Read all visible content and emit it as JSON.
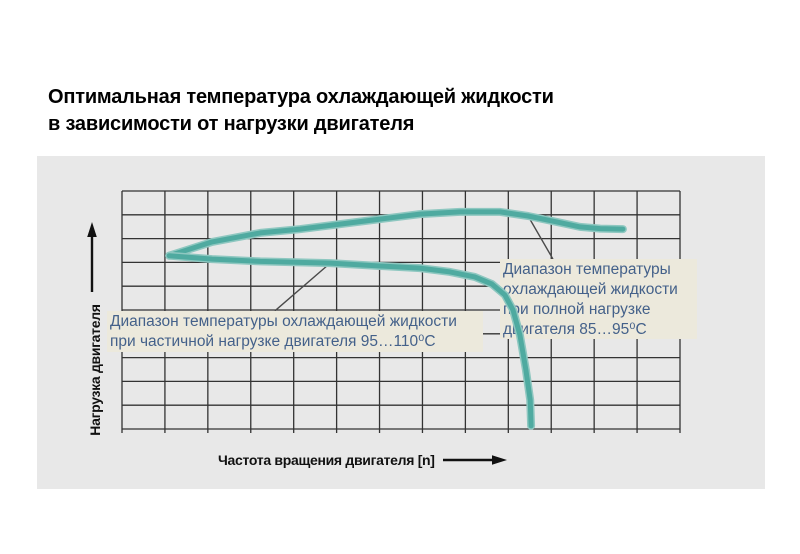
{
  "slide": {
    "title": "Оптимальная температура охлаждающей жидкости\nв зависимости от нагрузки двигателя"
  },
  "chart_data": {
    "type": "line",
    "title": "Оптимальная температура охлаждающей жидкости в зависимости от нагрузки двигателя",
    "xlabel": "Частота вращения двигателя [n]",
    "ylabel": "Нагрузка двигателя",
    "axes": {
      "qualitative": true,
      "x_arrow": "right",
      "y_arrow": "up",
      "x_range_grid_units": [
        0,
        13
      ],
      "y_range_grid_units": [
        0,
        10
      ],
      "grid": "on",
      "grid_columns": 13,
      "grid_rows": 10
    },
    "legend": "none",
    "colors": {
      "panel_bg": "#e8e8e8",
      "grid_line": "#333333",
      "curve": "#4faaa0",
      "curve_halo": "#8ec7c0",
      "leader_line": "#4a4a4a",
      "note_bg": "#ece9dc",
      "note_text": "#44618a"
    },
    "series": [
      {
        "name": "coolant-temp-boundary-full-load",
        "points": [
          [
            1.1,
            7.28
          ],
          [
            2.1,
            7.86
          ],
          [
            3.22,
            8.24
          ],
          [
            4.15,
            8.4
          ],
          [
            5.08,
            8.61
          ],
          [
            6.01,
            8.82
          ],
          [
            6.94,
            9.03
          ],
          [
            7.87,
            9.12
          ],
          [
            8.81,
            9.12
          ],
          [
            9.46,
            8.95
          ],
          [
            10.13,
            8.7
          ],
          [
            10.67,
            8.49
          ],
          [
            11.14,
            8.42
          ],
          [
            11.67,
            8.4
          ]
        ]
      },
      {
        "name": "coolant-temp-boundary-partial-load",
        "points": [
          [
            1.1,
            7.28
          ],
          [
            2.1,
            7.14
          ],
          [
            3.22,
            7.04
          ],
          [
            4.85,
            6.97
          ],
          [
            6.01,
            6.85
          ],
          [
            6.94,
            6.76
          ],
          [
            7.64,
            6.6
          ],
          [
            8.22,
            6.39
          ],
          [
            8.62,
            6.09
          ],
          [
            8.92,
            5.63
          ],
          [
            9.11,
            5.0
          ],
          [
            9.27,
            3.95
          ],
          [
            9.41,
            2.48
          ],
          [
            9.51,
            1.22
          ],
          [
            9.53,
            0.13
          ]
        ]
      }
    ],
    "annotations": [
      {
        "id": "partial-load",
        "text": "Диапазон температуры охлаждающей жидкости\nпри частичной нагрузке двигателя 95…110⁰С",
        "leader": [
          [
            4.85,
            6.97
          ],
          [
            3.56,
            4.96
          ]
        ]
      },
      {
        "id": "full-load",
        "text": "Диапазон температуры\nохлаждающей жидкости\nпри полной нагрузке\nдвигателя 85…95⁰С",
        "leader": [
          [
            9.46,
            8.95
          ],
          [
            10.04,
            7.14
          ]
        ]
      }
    ]
  }
}
